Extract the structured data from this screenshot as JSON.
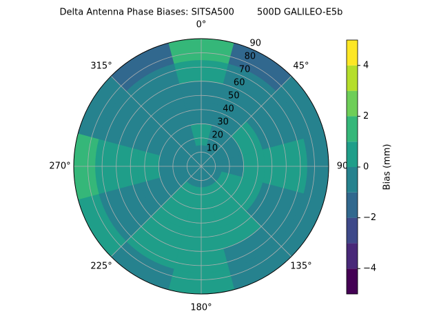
{
  "chart_data": {
    "type": "polar_contour",
    "title": "Delta Antenna Phase Biases: SITSA500        500D GALILEO-E5b",
    "theta": [
      0,
      30,
      60,
      90,
      120,
      150,
      180,
      210,
      240,
      270,
      300,
      330
    ],
    "r": [
      7.5,
      22.5,
      37.5,
      52.5,
      67.5,
      82.5
    ],
    "values": [
      [
        -0.5,
        -0.5,
        -0.5,
        -0.5,
        -0.5,
        -0.5,
        -0.5,
        -0.5,
        -0.5,
        -0.5,
        -0.5,
        -0.5
      ],
      [
        0.5,
        -0.5,
        -0.5,
        -0.5,
        0.5,
        0.5,
        0.5,
        0.5,
        -0.5,
        -0.5,
        -0.5,
        -0.5
      ],
      [
        -0.5,
        -0.5,
        0.5,
        0.5,
        0.5,
        0.5,
        0.5,
        0.5,
        -0.5,
        0.5,
        -0.5,
        -0.5
      ],
      [
        -0.5,
        -0.5,
        -0.5,
        0.5,
        -0.5,
        0.5,
        0.5,
        0.5,
        -0.5,
        0.5,
        -0.5,
        -0.5
      ],
      [
        0.5,
        -0.5,
        -0.5,
        0.5,
        -0.5,
        -0.5,
        0.5,
        0.5,
        -0.5,
        0.5,
        -0.5,
        -0.5
      ],
      [
        1.5,
        -1.5,
        -0.5,
        -0.5,
        -0.5,
        -0.5,
        0.5,
        -0.5,
        0.5,
        1.5,
        -0.5,
        -1.5
      ]
    ],
    "rlim": [
      0,
      90
    ],
    "rticks": [
      10,
      20,
      30,
      40,
      50,
      60,
      70,
      80,
      90
    ],
    "thetaticks": [
      {
        "value": 0,
        "label": "0°"
      },
      {
        "value": 45,
        "label": "45°"
      },
      {
        "value": 90,
        "label": "90"
      },
      {
        "value": 135,
        "label": "135°"
      },
      {
        "value": 180,
        "label": "180°"
      },
      {
        "value": 225,
        "label": "225°"
      },
      {
        "value": 270,
        "label": "270°"
      },
      {
        "value": 315,
        "label": "315°"
      }
    ],
    "levels": [
      -5,
      -4,
      -3,
      -2,
      -1,
      0,
      1,
      2,
      3,
      4,
      5
    ],
    "colors": [
      "#440154",
      "#482878",
      "#3e4989",
      "#31688e",
      "#26828e",
      "#1f9e89",
      "#35b779",
      "#6ece58",
      "#b5de2b",
      "#fde725"
    ],
    "colorbar_label": "Bias (mm)",
    "clim": [
      -5,
      5
    ],
    "cticks": [
      {
        "value": -4,
        "label": "−4"
      },
      {
        "value": -2,
        "label": "−2"
      },
      0,
      2,
      4
    ],
    "grid": true
  }
}
